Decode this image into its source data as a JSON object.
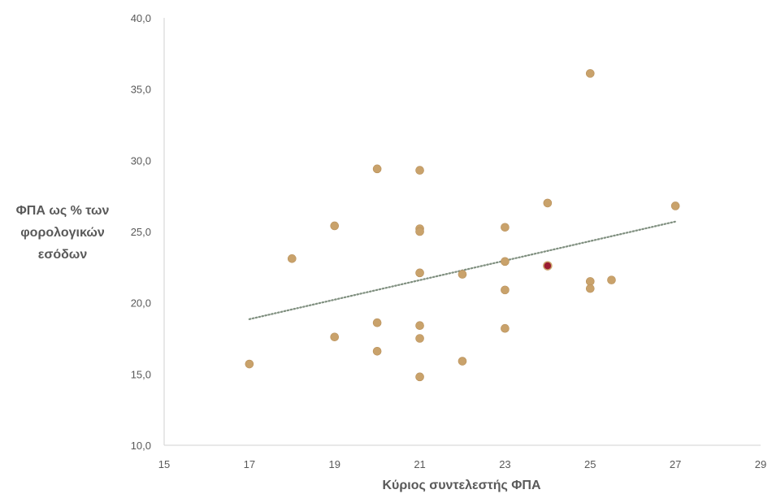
{
  "chart_data": {
    "type": "scatter",
    "title": "",
    "xlabel": "Κύριος συντελεστής ΦΠΑ",
    "ylabel_lines": [
      "ΦΠΑ ως %  των",
      "φορολογικών",
      "εσόδων"
    ],
    "xlim": [
      15,
      29
    ],
    "ylim": [
      10,
      40
    ],
    "x_ticks": [
      15,
      17,
      19,
      21,
      23,
      25,
      27,
      29
    ],
    "y_ticks": [
      "10,0",
      "15,0",
      "20,0",
      "25,0",
      "30,0",
      "35,0",
      "40,0"
    ],
    "y_tick_values": [
      10,
      15,
      20,
      25,
      30,
      35,
      40
    ],
    "grid": false,
    "legend": "none",
    "point_color": "#c9a26b",
    "highlight_color": "#9b1c31",
    "trendline": {
      "style": "dotted",
      "color": "#7f8f7f",
      "x": [
        17,
        27
      ],
      "y": [
        18.85,
        25.7
      ]
    },
    "points": [
      {
        "x": 17,
        "y": 15.7
      },
      {
        "x": 18,
        "y": 23.1
      },
      {
        "x": 19,
        "y": 25.4
      },
      {
        "x": 19,
        "y": 17.6
      },
      {
        "x": 20,
        "y": 29.4
      },
      {
        "x": 20,
        "y": 18.6
      },
      {
        "x": 20,
        "y": 16.6
      },
      {
        "x": 21,
        "y": 29.3
      },
      {
        "x": 21,
        "y": 25.2
      },
      {
        "x": 21,
        "y": 25.0
      },
      {
        "x": 21,
        "y": 22.1
      },
      {
        "x": 21,
        "y": 18.4
      },
      {
        "x": 21,
        "y": 17.5
      },
      {
        "x": 21,
        "y": 14.8
      },
      {
        "x": 22,
        "y": 22.0
      },
      {
        "x": 22,
        "y": 15.9
      },
      {
        "x": 23,
        "y": 25.3
      },
      {
        "x": 23,
        "y": 22.9
      },
      {
        "x": 23,
        "y": 20.9
      },
      {
        "x": 23,
        "y": 18.2
      },
      {
        "x": 24,
        "y": 27.0
      },
      {
        "x": 24,
        "y": 22.6,
        "highlight": true
      },
      {
        "x": 25,
        "y": 36.1
      },
      {
        "x": 25,
        "y": 21.5
      },
      {
        "x": 25,
        "y": 21.0
      },
      {
        "x": 25.5,
        "y": 21.6
      },
      {
        "x": 27,
        "y": 26.8
      }
    ]
  }
}
